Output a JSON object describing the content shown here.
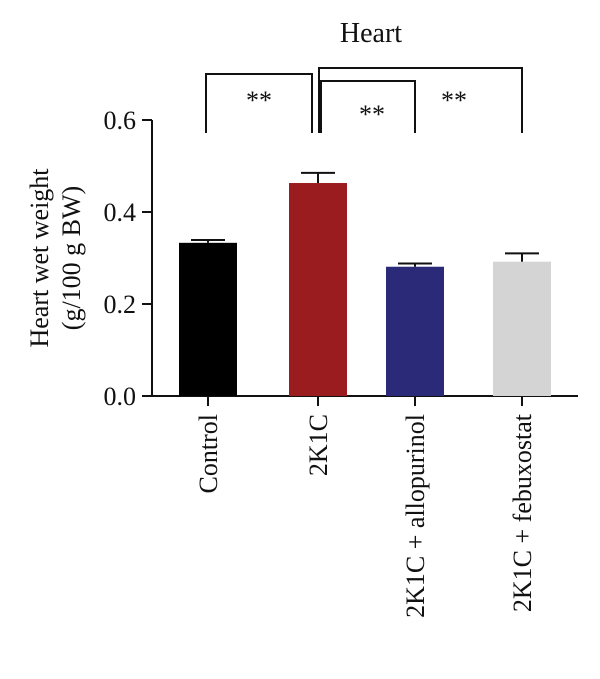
{
  "chart_data": {
    "type": "bar",
    "title": "Heart",
    "ylabel_line1": "Heart wet weight",
    "ylabel_line2": "(g/100 g BW)",
    "xlabel": "",
    "ylim": [
      0,
      0.6
    ],
    "yticks": [
      "0.0",
      "0.2",
      "0.4",
      "0.6"
    ],
    "categories": [
      "Control",
      "2K1C",
      "2K1C + allopurinol",
      "2K1C + febuxostat"
    ],
    "values": [
      0.333,
      0.463,
      0.281,
      0.292
    ],
    "errors": [
      0.006,
      0.022,
      0.007,
      0.018
    ],
    "colors": [
      "#000000",
      "#9b1c1f",
      "#2a2a78",
      "#d4d4d4"
    ],
    "significance": [
      {
        "from": 0,
        "to": 1,
        "label": "**"
      },
      {
        "from": 1,
        "to": 2,
        "label": "**"
      },
      {
        "from": 1,
        "to": 3,
        "label": "**"
      }
    ]
  }
}
